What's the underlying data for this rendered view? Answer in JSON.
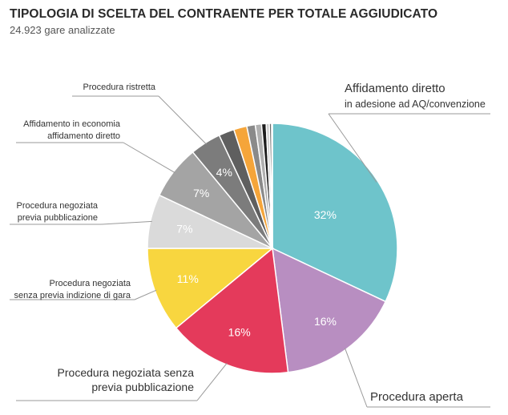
{
  "header": {
    "title": "TIPOLOGIA DI SCELTA DEL CONTRAENTE PER TOTALE AGGIUDICATO",
    "subtitle": "24.923 gare analizzate"
  },
  "chart_data": {
    "type": "pie",
    "title": "TIPOLOGIA DI SCELTA DEL CONTRAENTE PER TOTALE AGGIUDICATO",
    "subtitle": "24.923 gare analizzate",
    "start_angle_deg": 0,
    "direction": "clockwise",
    "slices": [
      {
        "label": "Affidamento diretto in adesione ad AQ/convenzione",
        "value": 32,
        "value_label": "32%",
        "color": "#6ec4cb"
      },
      {
        "label": "Procedura aperta",
        "value": 16,
        "value_label": "16%",
        "color": "#b88ec1"
      },
      {
        "label": "Procedura negoziata senza previa pubblicazione",
        "value": 16,
        "value_label": "16%",
        "color": "#e43a5b"
      },
      {
        "label": "Procedura negoziata senza previa indizione di gara",
        "value": 11,
        "value_label": "11%",
        "color": "#f8d63f"
      },
      {
        "label": "Procedura negoziata previa pubblicazione",
        "value": 7,
        "value_label": "7%",
        "color": "#dadada"
      },
      {
        "label": "Affidamento in economia affidamento diretto",
        "value": 7,
        "value_label": "7%",
        "color": "#a4a4a4"
      },
      {
        "label": "Procedura ristretta",
        "value": 4,
        "value_label": "4%",
        "color": "#7c7c7c"
      },
      {
        "label": "",
        "value": 2,
        "value_label": "",
        "color": "#5f5f5f"
      },
      {
        "label": "",
        "value": 1.7,
        "value_label": "",
        "color": "#f5a53a"
      },
      {
        "label": "",
        "value": 1.1,
        "value_label": "",
        "color": "#8a8a8a"
      },
      {
        "label": "",
        "value": 0.8,
        "value_label": "",
        "color": "#b0b0b0"
      },
      {
        "label": "",
        "value": 0.6,
        "value_label": "",
        "color": "#1e1e1e"
      },
      {
        "label": "",
        "value": 0.4,
        "value_label": "",
        "color": "#cccccc"
      },
      {
        "label": "",
        "value": 0.3,
        "value_label": "",
        "color": "#6a6a6a"
      },
      {
        "label": "",
        "value": 0.1,
        "value_label": "",
        "color": "#9a9a9a"
      }
    ],
    "callouts": [
      {
        "slice": 0,
        "lines": [
          "Affidamento diretto",
          "in adesione ad AQ/convenzione"
        ]
      },
      {
        "slice": 1,
        "lines": [
          "Procedura aperta"
        ]
      },
      {
        "slice": 2,
        "lines": [
          "Procedura negoziata senza",
          "previa pubblicazione"
        ]
      },
      {
        "slice": 3,
        "lines": [
          "Procedura negoziata",
          "senza previa indizione di gara"
        ]
      },
      {
        "slice": 4,
        "lines": [
          "Procedura negoziata",
          "previa pubblicazione"
        ]
      },
      {
        "slice": 5,
        "lines": [
          "Affidamento in economia",
          "affidamento diretto"
        ]
      },
      {
        "slice": 6,
        "lines": [
          "Procedura ristretta"
        ]
      }
    ]
  }
}
